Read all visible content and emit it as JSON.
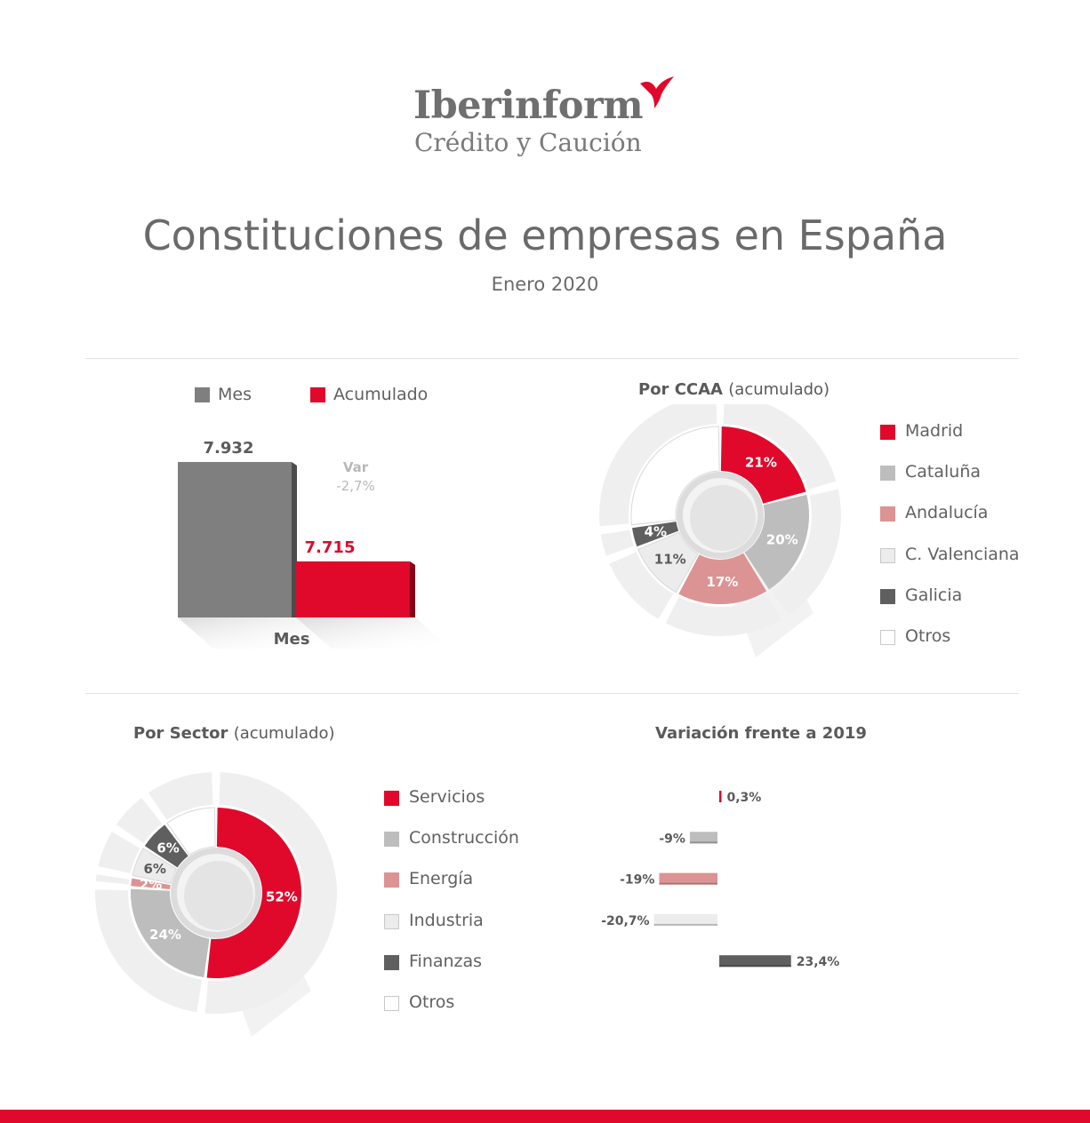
{
  "brand": {
    "name": "Iberinform",
    "subtitle": "Crédito y Caución",
    "accent_color": "#e0092b"
  },
  "header": {
    "title": "Constituciones de empresas en España",
    "subtitle": "Enero 2020"
  },
  "chart_data": [
    {
      "type": "bar",
      "legend": [
        "Mes",
        "Acumulado"
      ],
      "categories": [
        "Mes"
      ],
      "series": [
        {
          "name": "Mes",
          "values": [
            7932
          ],
          "label": "7.932",
          "color": "#7f7f7f"
        },
        {
          "name": "Acumulado",
          "values": [
            7715
          ],
          "label": "7.715",
          "color": "#e0092b"
        }
      ],
      "annotation": {
        "title": "Var",
        "value": "-2,7%"
      },
      "xlabel": "Mes",
      "ylim": [
        0,
        8000
      ]
    },
    {
      "type": "pie",
      "title": "Por CCAA",
      "title_note": "(acumulado)",
      "labels": [
        "Madrid",
        "Cataluña",
        "Andalucía",
        "C. Valenciana",
        "Galicia",
        "Otros"
      ],
      "values": [
        21,
        20,
        17,
        11,
        4,
        27
      ],
      "value_labels": [
        "21%",
        "20%",
        "17%",
        "11%",
        "4%",
        ""
      ],
      "colors": [
        "#e0092b",
        "#bdbdbd",
        "#dc9393",
        "#ececec",
        "#5f5f5f",
        "#ffffff"
      ]
    },
    {
      "type": "pie",
      "title": "Por Sector",
      "title_note": "(acumulado)",
      "labels": [
        "Servicios",
        "Construcción",
        "Energía",
        "Industria",
        "Finanzas",
        "Otros"
      ],
      "values": [
        52,
        24,
        2,
        6,
        6,
        10
      ],
      "value_labels": [
        "52%",
        "24%",
        "2%",
        "6%",
        "6%",
        ""
      ],
      "colors": [
        "#e0092b",
        "#bdbdbd",
        "#dc9393",
        "#ececec",
        "#5f5f5f",
        "#ffffff"
      ]
    },
    {
      "type": "bar",
      "orientation": "horizontal",
      "title": "Variación frente a 2019",
      "categories": [
        "Servicios",
        "Construcción",
        "Energía",
        "Industria",
        "Finanzas"
      ],
      "values": [
        0.3,
        -9,
        -19,
        -20.7,
        23.4
      ],
      "value_labels": [
        "0,3%",
        "-9%",
        "-19%",
        "-20,7%",
        "23,4%"
      ],
      "colors": [
        "#e0092b",
        "#bdbdbd",
        "#dc9393",
        "#ececec",
        "#5f5f5f"
      ]
    }
  ]
}
